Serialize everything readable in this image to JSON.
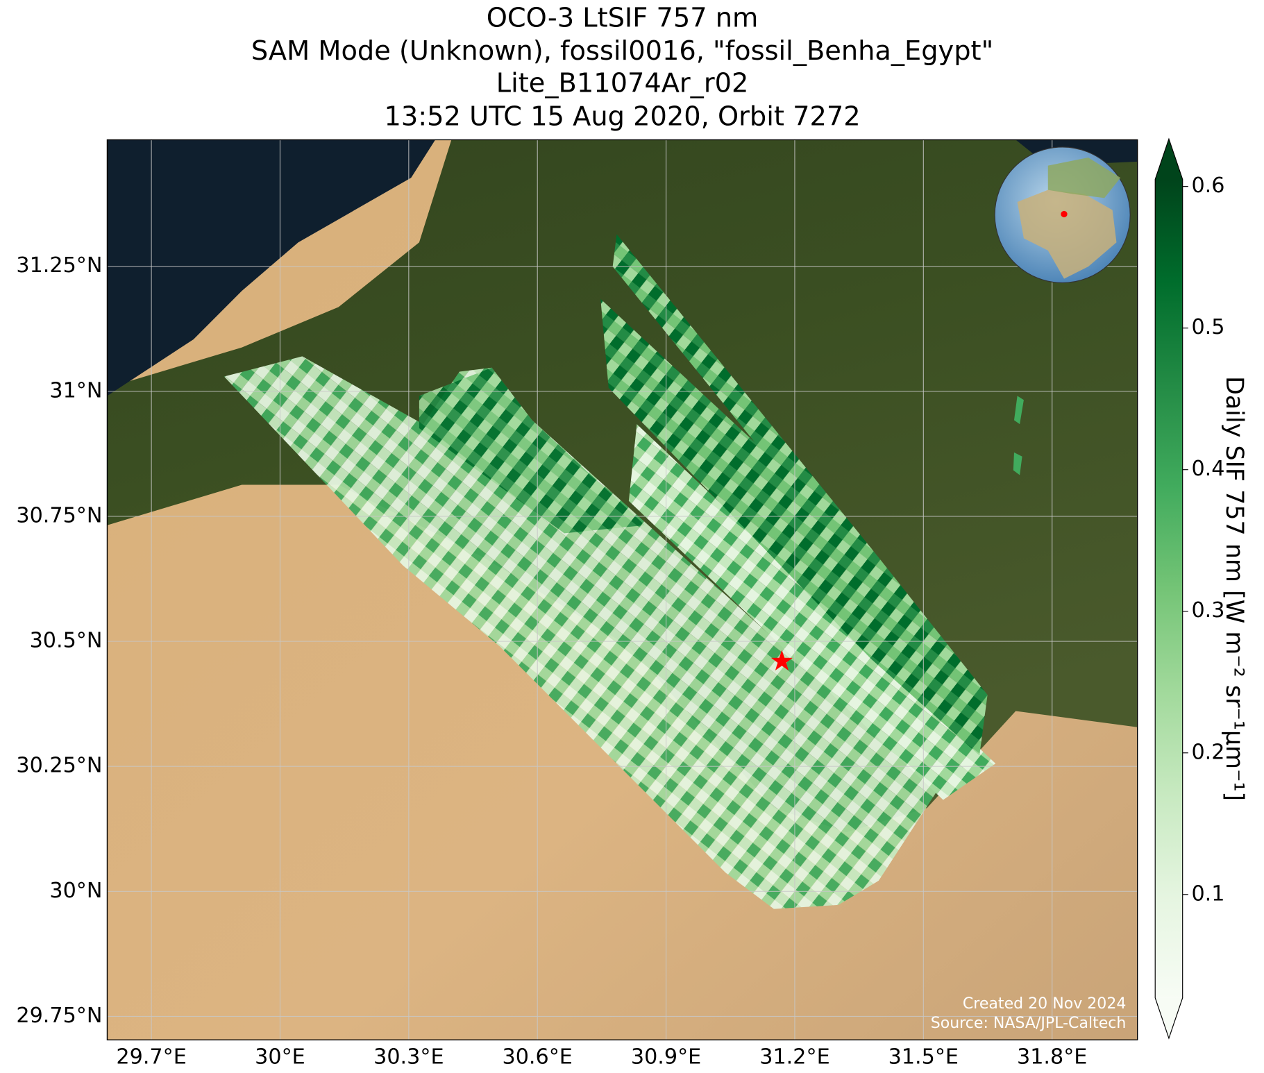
{
  "chart_data": {
    "type": "map",
    "title": [
      "OCO-3 LtSIF 757 nm",
      "SAM Mode (Unknown), fossil0016, \"fossil_Benha_Egypt\"",
      "Lite_B11074Ar_r02",
      "13:52 UTC 15 Aug 2020, Orbit 7272"
    ],
    "xlim": [
      29.597,
      31.999
    ],
    "ylim": [
      29.703,
      31.503
    ],
    "xticks": [
      {
        "value": 29.7,
        "label": "29.7°E"
      },
      {
        "value": 30.0,
        "label": "30°E"
      },
      {
        "value": 30.3,
        "label": "30.3°E"
      },
      {
        "value": 30.6,
        "label": "30.6°E"
      },
      {
        "value": 30.9,
        "label": "30.9°E"
      },
      {
        "value": 31.2,
        "label": "31.2°E"
      },
      {
        "value": 31.5,
        "label": "31.5°E"
      },
      {
        "value": 31.8,
        "label": "31.8°E"
      }
    ],
    "yticks": [
      {
        "value": 29.75,
        "label": "29.75°N"
      },
      {
        "value": 30.0,
        "label": "30°N"
      },
      {
        "value": 30.25,
        "label": "30.25°N"
      },
      {
        "value": 30.5,
        "label": "30.5°N"
      },
      {
        "value": 30.75,
        "label": "30.75°N"
      },
      {
        "value": 31.0,
        "label": "31°N"
      },
      {
        "value": 31.25,
        "label": "31.25°N"
      }
    ],
    "grid": true,
    "site": {
      "lon": 31.17,
      "lat": 30.46,
      "color": "#ff0000"
    },
    "colorbar": {
      "label": "Daily SIF 757 nm [W m⁻² sr⁻¹μm⁻¹]",
      "clim": [
        0.027,
        0.605
      ],
      "ticks": [
        0.1,
        0.2,
        0.3,
        0.4,
        0.5,
        0.6
      ],
      "colormap": [
        "#f7fcf5",
        "#e5f5e0",
        "#c7e9c0",
        "#a1d99b",
        "#74c476",
        "#41ab5d",
        "#238b45",
        "#006d2c",
        "#00441b"
      ],
      "extend": "both"
    },
    "credits": [
      "Created 20 Nov 2024",
      "Source: NASA/JPL-Caltech"
    ]
  }
}
